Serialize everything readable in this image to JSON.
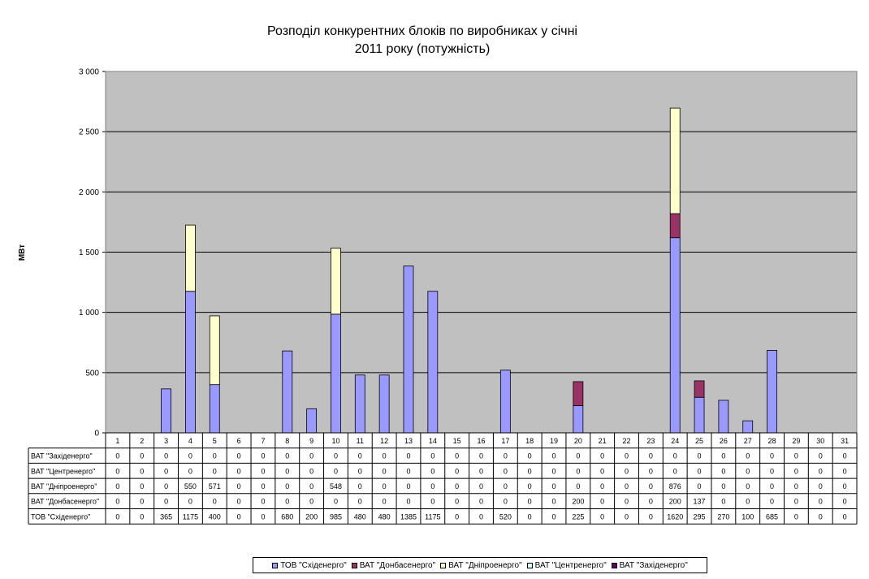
{
  "chart_data": {
    "type": "bar",
    "stacked": true,
    "title_lines": [
      "Розподіл конкурентних блоків по виробниках у січні",
      "2011 року (потужність)"
    ],
    "ylabel": "МВт",
    "xlabel": "",
    "ylim": [
      0,
      3000
    ],
    "ytick_values": [
      0,
      500,
      1000,
      1500,
      2000,
      2500,
      3000
    ],
    "ytick_labels": [
      "0",
      "500",
      "1 000",
      "1 500",
      "2 000",
      "2 500",
      "3 000"
    ],
    "grid": true,
    "legend_position": "bottom",
    "categories": [
      "1",
      "2",
      "3",
      "4",
      "5",
      "6",
      "7",
      "8",
      "9",
      "10",
      "11",
      "12",
      "13",
      "14",
      "15",
      "16",
      "17",
      "18",
      "19",
      "20",
      "21",
      "22",
      "23",
      "24",
      "25",
      "26",
      "27",
      "28",
      "29",
      "30",
      "31"
    ],
    "series": [
      {
        "name": "ТОВ \"Східенерго\"",
        "color": "#9999ff",
        "values": [
          0,
          0,
          365,
          1175,
          400,
          0,
          0,
          680,
          200,
          985,
          480,
          480,
          1385,
          1175,
          0,
          0,
          520,
          0,
          0,
          225,
          0,
          0,
          0,
          1620,
          295,
          270,
          100,
          685,
          0,
          0,
          0
        ]
      },
      {
        "name": "ВАТ \"Донбасенерго\"",
        "color": "#993366",
        "values": [
          0,
          0,
          0,
          0,
          0,
          0,
          0,
          0,
          0,
          0,
          0,
          0,
          0,
          0,
          0,
          0,
          0,
          0,
          0,
          200,
          0,
          0,
          0,
          200,
          137,
          0,
          0,
          0,
          0,
          0,
          0
        ]
      },
      {
        "name": "ВАТ \"Дніпроенерго\"",
        "color": "#ffffcc",
        "values": [
          0,
          0,
          0,
          550,
          571,
          0,
          0,
          0,
          0,
          548,
          0,
          0,
          0,
          0,
          0,
          0,
          0,
          0,
          0,
          0,
          0,
          0,
          0,
          876,
          0,
          0,
          0,
          0,
          0,
          0,
          0
        ]
      },
      {
        "name": "ВАТ \"Центренерго\"",
        "color": "#ccffff",
        "values": [
          0,
          0,
          0,
          0,
          0,
          0,
          0,
          0,
          0,
          0,
          0,
          0,
          0,
          0,
          0,
          0,
          0,
          0,
          0,
          0,
          0,
          0,
          0,
          0,
          0,
          0,
          0,
          0,
          0,
          0,
          0
        ]
      },
      {
        "name": "ВАТ \"Західенерго\"",
        "color": "#660066",
        "values": [
          0,
          0,
          0,
          0,
          0,
          0,
          0,
          0,
          0,
          0,
          0,
          0,
          0,
          0,
          0,
          0,
          0,
          0,
          0,
          0,
          0,
          0,
          0,
          0,
          0,
          0,
          0,
          0,
          0,
          0,
          0
        ]
      }
    ],
    "table_row_order": [
      4,
      3,
      2,
      1,
      0
    ]
  }
}
